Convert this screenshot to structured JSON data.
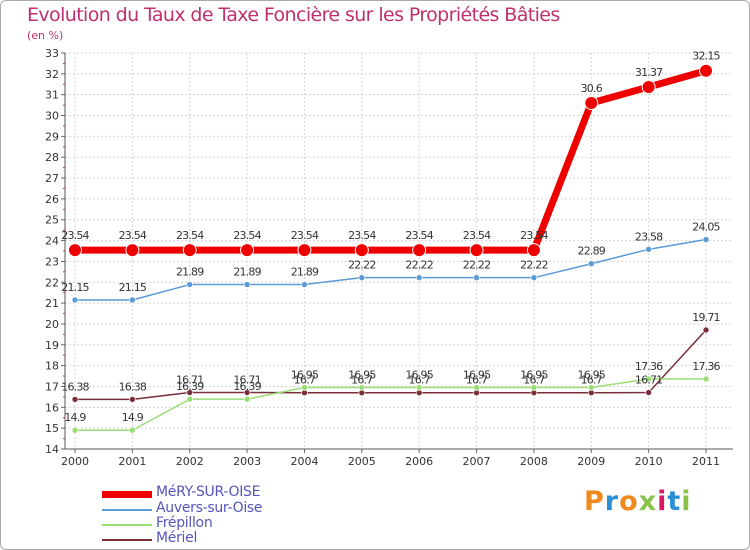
{
  "title": "Evolution du Taux de Taxe Foncière sur les Propriétés Bâties",
  "subtitle": "(en %)",
  "logo": {
    "text": "Proxiti",
    "colors": [
      "#f08a1c",
      "#2c8fd6",
      "#f08a1c",
      "#8bc34a",
      "#d81b60",
      "#2c8fd6",
      "#8bc34a"
    ]
  },
  "chart_data": {
    "type": "line",
    "title": "Evolution du Taux de Taxe Foncière sur les Propriétés Bâties",
    "ylabel": "(en %)",
    "xlabel": "",
    "ylim": [
      14,
      33
    ],
    "yticks": [
      "14",
      "15",
      "16",
      "17",
      "18",
      "19",
      "20",
      "21",
      "22",
      "23",
      "24",
      "25",
      "26",
      "27",
      "28",
      "29",
      "30",
      "31",
      "32",
      "33"
    ],
    "x": [
      "2000",
      "2001",
      "2002",
      "2003",
      "2004",
      "2005",
      "2006",
      "2007",
      "2008",
      "2009",
      "2010",
      "2011"
    ],
    "legend_position": "bottom-left",
    "series": [
      {
        "name": "MéRY-SUR-OISE",
        "color": "#ee0000",
        "values": [
          23.54,
          23.54,
          23.54,
          23.54,
          23.54,
          23.54,
          23.54,
          23.54,
          23.54,
          30.6,
          31.37,
          32.15
        ],
        "labels": [
          "23.54",
          "23.54",
          "23.54",
          "23.54",
          "23.54",
          "23.54",
          "23.54",
          "23.54",
          "23.54",
          "30.6",
          "31.37",
          "32.15"
        ]
      },
      {
        "name": "Auvers-sur-Oise",
        "color": "#5b9bd5",
        "values": [
          21.15,
          21.15,
          21.89,
          21.89,
          21.89,
          22.22,
          22.22,
          22.22,
          22.22,
          22.89,
          23.58,
          24.05
        ],
        "labels": [
          "21.15",
          "21.15",
          "21.89",
          "21.89",
          "21.89",
          "22.22",
          "22.22",
          "22.22",
          "22.22",
          "22.89",
          "23.58",
          "24.05"
        ]
      },
      {
        "name": "Frépillon",
        "color": "#99dd77",
        "values": [
          14.9,
          14.9,
          16.39,
          16.39,
          16.95,
          16.95,
          16.95,
          16.95,
          16.95,
          16.95,
          17.36,
          17.36
        ],
        "labels": [
          "14.9",
          "14.9",
          "16.39",
          "16.39",
          "16.95",
          "16.95",
          "16.95",
          "16.95",
          "16.95",
          "16.95",
          "17.36",
          "17.36"
        ]
      },
      {
        "name": "Mériel",
        "color": "#7a2e3a",
        "values": [
          16.38,
          16.38,
          16.71,
          16.71,
          16.7,
          16.7,
          16.7,
          16.7,
          16.7,
          16.7,
          16.71,
          19.71
        ],
        "labels": [
          "16.38",
          "16.38",
          "16.71",
          "16.71",
          "16.7",
          "16.7",
          "16.7",
          "16.7",
          "16.7",
          "16.7",
          "16.71",
          "19.71"
        ]
      }
    ]
  }
}
